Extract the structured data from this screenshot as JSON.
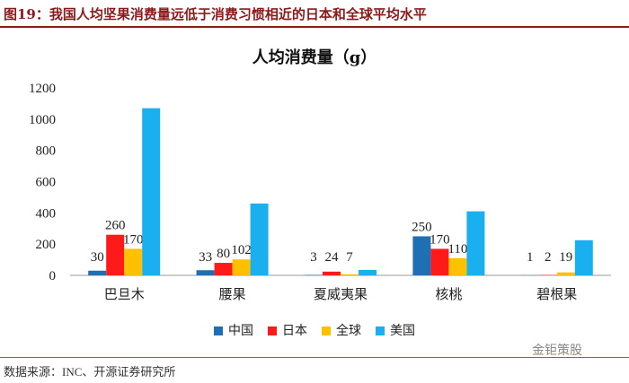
{
  "figure": {
    "title": "图19：我国人均坚果消费量远低于消费习惯相近的日本和全球平均水平",
    "source": "数据来源：INC、开源证券研究所",
    "watermark": "金钜策股"
  },
  "colors": {
    "title_red": "#8b1a1a",
    "china": "#1f6fb5",
    "japan": "#ff1a1a",
    "global": "#ffc000",
    "usa": "#1ab0f0"
  },
  "chart_data": {
    "type": "bar",
    "title": "人均消费量（g）",
    "xlabel": "",
    "ylabel": "",
    "ylim": [
      0,
      1200
    ],
    "yticks": [
      "0",
      "200",
      "400",
      "600",
      "800",
      "1000",
      "1200"
    ],
    "grid": false,
    "legend_position": "bottom",
    "categories": [
      "巴旦木",
      "腰果",
      "夏威夷果",
      "核桃",
      "碧根果"
    ],
    "series": [
      {
        "name": "中国",
        "values": [
          30,
          33,
          3,
          250,
          1
        ],
        "labels": [
          "30",
          "33",
          "3",
          "250",
          "1"
        ]
      },
      {
        "name": "日本",
        "values": [
          260,
          80,
          24,
          170,
          2
        ],
        "labels": [
          "260",
          "80",
          "24",
          "170",
          "2"
        ]
      },
      {
        "name": "全球",
        "values": [
          170,
          102,
          7,
          110,
          19
        ],
        "labels": [
          "170",
          "102",
          "7",
          "110",
          "19"
        ]
      },
      {
        "name": "美国",
        "values": [
          1070,
          460,
          35,
          410,
          225
        ],
        "labels": [
          "",
          "",
          "",
          "",
          ""
        ]
      }
    ]
  }
}
